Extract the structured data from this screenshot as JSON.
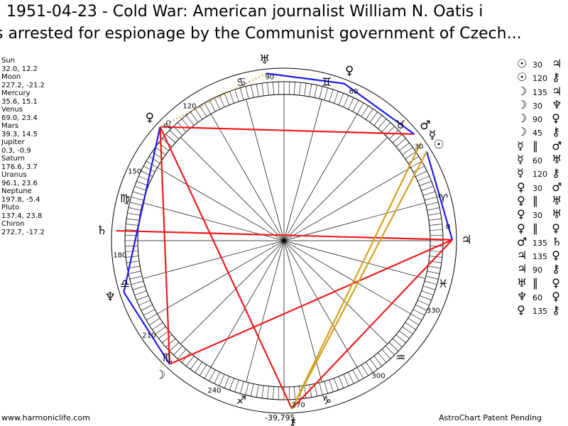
{
  "title": {
    "line1": "1951-04-23 - Cold War: American journalist William N. Oatis i",
    "line2": "s arrested for espionage by the Communist government of Czech..."
  },
  "positions": [
    {
      "name": "Sun",
      "value": "32.0, 12.2"
    },
    {
      "name": "Moon",
      "value": "227.2, -21.2"
    },
    {
      "name": "Mercury",
      "value": "35.6, 15.1"
    },
    {
      "name": "Venus",
      "value": "69.0, 23.4"
    },
    {
      "name": "Mars",
      "value": "39.3, 14.5"
    },
    {
      "name": "Jupiter",
      "value": "0.3, -0.9"
    },
    {
      "name": "Saturn",
      "value": "176.6, 3.7"
    },
    {
      "name": "Uranus",
      "value": "96.1, 23.6"
    },
    {
      "name": "Neptune",
      "value": "197.8, -5.4"
    },
    {
      "name": "Pluto",
      "value": "137.4, 23.8"
    },
    {
      "name": "Chiron",
      "value": "272.7, -17.2"
    }
  ],
  "aspects": [
    {
      "p1": "☉",
      "angle": "30",
      "p2": "♃"
    },
    {
      "p1": "☉",
      "angle": "120",
      "p2": "⚷"
    },
    {
      "p1": "☽",
      "angle": "135",
      "p2": "♃"
    },
    {
      "p1": "☽",
      "angle": "30",
      "p2": "♆"
    },
    {
      "p1": "☽",
      "angle": "90",
      "p2": "♀"
    },
    {
      "p1": "☽",
      "angle": "45",
      "p2": "⚷"
    },
    {
      "p1": "☿",
      "angle": "∥",
      "p2": "♂"
    },
    {
      "p1": "☿",
      "angle": "60",
      "p2": "♅"
    },
    {
      "p1": "☿",
      "angle": "120",
      "p2": "⚷"
    },
    {
      "p1": "♀",
      "angle": "30",
      "p2": "♂"
    },
    {
      "p1": "♀",
      "angle": "∥",
      "p2": "♅"
    },
    {
      "p1": "♀",
      "angle": "30",
      "p2": "♅"
    },
    {
      "p1": "♀",
      "angle": "∥",
      "p2": "♀"
    },
    {
      "p1": "♂",
      "angle": "135",
      "p2": "♄"
    },
    {
      "p1": "♃",
      "angle": "135",
      "p2": "♀"
    },
    {
      "p1": "♃",
      "angle": "90",
      "p2": "⚷"
    },
    {
      "p1": "♅",
      "angle": "∥",
      "p2": "♀"
    },
    {
      "p1": "♆",
      "angle": "60",
      "p2": "♀"
    },
    {
      "p1": "♀",
      "angle": "135",
      "p2": "⚷"
    }
  ],
  "footer": {
    "url": "www.harmoniclife.com",
    "coords": "-39,795",
    "credit": "AstroChart Patent Pending"
  },
  "wheel": {
    "degree_labels": [
      "0",
      "30",
      "60",
      "90",
      "120",
      "150",
      "180",
      "210",
      "240",
      "270",
      "300",
      "330"
    ],
    "signs": [
      "♈",
      "♉",
      "♊",
      "♋",
      "♌",
      "♍",
      "♎",
      "♏",
      "♐",
      "♑",
      "♒",
      "♓"
    ],
    "planets": [
      {
        "glyph": "☉",
        "lon": 32.0
      },
      {
        "glyph": "☽",
        "lon": 227.2
      },
      {
        "glyph": "☿",
        "lon": 35.6
      },
      {
        "glyph": "♀",
        "lon": 69.0
      },
      {
        "glyph": "♂",
        "lon": 39.3
      },
      {
        "glyph": "♃",
        "lon": 0.3
      },
      {
        "glyph": "♄",
        "lon": 176.6
      },
      {
        "glyph": "♅",
        "lon": 96.1
      },
      {
        "glyph": "♆",
        "lon": 197.8
      },
      {
        "glyph": "♀",
        "lon": 137.4
      },
      {
        "glyph": "⚷",
        "lon": 272.7
      }
    ],
    "colors": {
      "square": "#ee1c1c",
      "sextile": "#1c1cee",
      "trine_pair": "#d4a020",
      "dotted": "#c8a040"
    },
    "lines": [
      {
        "from": 39.3,
        "to": 137.4,
        "color": "#ee1c1c"
      },
      {
        "from": 137.4,
        "to": 227.2,
        "color": "#ee1c1c"
      },
      {
        "from": 227.2,
        "to": 0.3,
        "color": "#ee1c1c"
      },
      {
        "from": 0.3,
        "to": 176.6,
        "color": "#ee1c1c"
      },
      {
        "from": 272.7,
        "to": 137.4,
        "color": "#ee1c1c"
      },
      {
        "from": 0.3,
        "to": 272.7,
        "color": "#ee1c1c"
      },
      {
        "from": 227.2,
        "to": 197.8,
        "color": "#1c1cee"
      },
      {
        "from": 197.8,
        "to": 137.4,
        "color": "#1c1cee"
      },
      {
        "from": 96.1,
        "to": 69.0,
        "color": "#1c1cee"
      },
      {
        "from": 69.0,
        "to": 39.3,
        "color": "#1c1cee"
      },
      {
        "from": 32.0,
        "to": 0.3,
        "color": "#1c1cee"
      },
      {
        "from": 32.0,
        "to": 272.7,
        "color": "#d4a020"
      },
      {
        "from": 35.6,
        "to": 272.7,
        "color": "#d4a020"
      },
      {
        "from": 96.1,
        "to": 137.4,
        "color": "#c8a040",
        "dotted": true
      }
    ]
  }
}
